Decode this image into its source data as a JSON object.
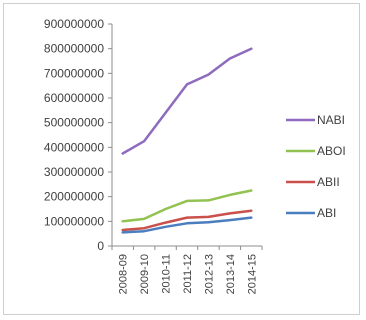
{
  "chart_data": {
    "type": "line",
    "title": "",
    "xlabel": "",
    "ylabel": "",
    "categories": [
      "2008-09",
      "2009-10",
      "2010-11",
      "2011-12",
      "2012-13",
      "2013-14",
      "2014-15"
    ],
    "ylim": [
      0,
      900000000
    ],
    "yticks": [
      0,
      100000000,
      200000000,
      300000000,
      400000000,
      500000000,
      600000000,
      700000000,
      800000000,
      900000000
    ],
    "grid": false,
    "legend": "right",
    "series": [
      {
        "name": "NABI",
        "color": "#8e6bbf",
        "values": [
          375000000,
          425000000,
          540000000,
          655000000,
          695000000,
          760000000,
          800000000
        ]
      },
      {
        "name": "ABOI",
        "color": "#92c352",
        "values": [
          100000000,
          110000000,
          150000000,
          183000000,
          185000000,
          207000000,
          225000000
        ]
      },
      {
        "name": "ABII",
        "color": "#c9504b",
        "values": [
          65000000,
          72000000,
          95000000,
          115000000,
          118000000,
          132000000,
          143000000
        ]
      },
      {
        "name": "ABI",
        "color": "#4a7ebf",
        "values": [
          55000000,
          60000000,
          78000000,
          92000000,
          96000000,
          105000000,
          115000000
        ]
      }
    ]
  }
}
